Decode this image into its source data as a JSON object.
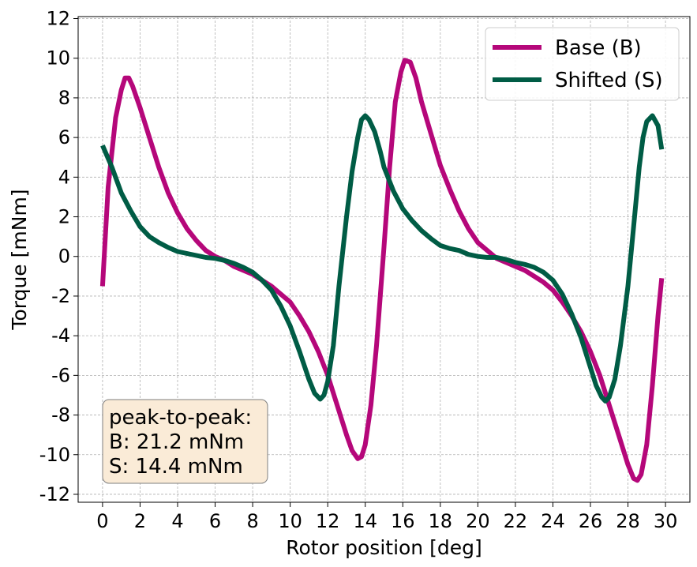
{
  "chart_data": {
    "type": "line",
    "title": "",
    "xlabel": "Rotor position [deg]",
    "ylabel": "Torque [mNm]",
    "xlim": [
      -1.3,
      31.3
    ],
    "ylim": [
      -12.4,
      12.1
    ],
    "xticks": [
      0,
      2,
      4,
      6,
      8,
      10,
      12,
      14,
      16,
      18,
      20,
      22,
      24,
      26,
      28,
      30
    ],
    "yticks": [
      -12,
      -10,
      -8,
      -6,
      -4,
      -2,
      0,
      2,
      4,
      6,
      8,
      10,
      12
    ],
    "grid": true,
    "legend_position": "top-right",
    "series": [
      {
        "name": "Base (B)",
        "color": "#b5077a",
        "x": [
          0,
          0.3,
          0.7,
          1.0,
          1.2,
          1.4,
          1.6,
          2.0,
          2.5,
          3.0,
          3.5,
          4.0,
          4.5,
          5.0,
          5.5,
          6.0,
          6.5,
          7.0,
          7.5,
          8.0,
          8.5,
          9.0,
          9.5,
          10.0,
          10.5,
          11.0,
          11.5,
          12.0,
          12.5,
          13.0,
          13.3,
          13.6,
          13.8,
          14.0,
          14.3,
          14.6,
          15.0,
          15.3,
          15.6,
          15.9,
          16.1,
          16.4,
          16.7,
          17.0,
          17.5,
          18.0,
          18.5,
          19.0,
          19.5,
          20.0,
          20.5,
          21.0,
          21.5,
          22.0,
          22.5,
          23.0,
          23.5,
          24.0,
          24.5,
          25.0,
          25.5,
          26.0,
          26.5,
          27.0,
          27.5,
          28.0,
          28.3,
          28.5,
          28.7,
          29.0,
          29.3,
          29.6,
          29.8
        ],
        "values": [
          -1.5,
          3.5,
          7.0,
          8.4,
          9.0,
          9.0,
          8.6,
          7.5,
          6.0,
          4.5,
          3.2,
          2.2,
          1.4,
          0.8,
          0.3,
          0.0,
          -0.2,
          -0.5,
          -0.7,
          -0.9,
          -1.2,
          -1.5,
          -1.9,
          -2.3,
          -3.0,
          -3.8,
          -4.8,
          -6.0,
          -7.5,
          -9.0,
          -9.8,
          -10.2,
          -10.1,
          -9.5,
          -7.5,
          -4.5,
          0.5,
          4.5,
          7.8,
          9.3,
          9.9,
          9.8,
          9.0,
          7.8,
          6.2,
          4.6,
          3.4,
          2.3,
          1.4,
          0.7,
          0.3,
          -0.1,
          -0.3,
          -0.5,
          -0.7,
          -1.0,
          -1.3,
          -1.7,
          -2.3,
          -3.0,
          -3.8,
          -4.8,
          -6.0,
          -7.5,
          -9.0,
          -10.5,
          -11.2,
          -11.3,
          -11.0,
          -9.5,
          -6.5,
          -3.0,
          -1.1
        ]
      },
      {
        "name": "Shifted (S)",
        "color": "#005c45",
        "x": [
          0,
          0.5,
          1.0,
          1.5,
          2.0,
          2.5,
          3.0,
          3.5,
          4.0,
          4.5,
          5.0,
          5.5,
          6.0,
          6.5,
          7.0,
          7.5,
          8.0,
          8.5,
          9.0,
          9.5,
          10.0,
          10.5,
          11.0,
          11.3,
          11.6,
          11.8,
          12.0,
          12.3,
          12.6,
          13.0,
          13.3,
          13.6,
          13.8,
          14.0,
          14.2,
          14.5,
          14.8,
          15.0,
          15.5,
          16.0,
          16.5,
          17.0,
          17.5,
          18.0,
          18.5,
          19.0,
          19.5,
          20.0,
          20.5,
          21.0,
          21.5,
          22.0,
          22.5,
          23.0,
          23.5,
          24.0,
          24.5,
          25.0,
          25.5,
          26.0,
          26.3,
          26.6,
          26.8,
          27.0,
          27.3,
          27.6,
          28.0,
          28.3,
          28.6,
          28.8,
          29.0,
          29.3,
          29.6,
          29.8
        ],
        "values": [
          5.6,
          4.5,
          3.2,
          2.3,
          1.5,
          1.0,
          0.7,
          0.45,
          0.25,
          0.15,
          0.05,
          -0.05,
          -0.1,
          -0.2,
          -0.35,
          -0.55,
          -0.8,
          -1.2,
          -1.7,
          -2.5,
          -3.5,
          -4.8,
          -6.2,
          -6.9,
          -7.2,
          -7.0,
          -6.3,
          -4.5,
          -1.5,
          2.0,
          4.3,
          6.0,
          6.9,
          7.1,
          6.9,
          6.3,
          5.3,
          4.5,
          3.3,
          2.4,
          1.8,
          1.3,
          0.9,
          0.55,
          0.4,
          0.3,
          0.1,
          0.0,
          -0.05,
          -0.05,
          -0.15,
          -0.3,
          -0.4,
          -0.55,
          -0.8,
          -1.2,
          -1.9,
          -2.9,
          -4.1,
          -5.6,
          -6.5,
          -7.1,
          -7.3,
          -7.1,
          -6.2,
          -4.5,
          -1.5,
          1.5,
          4.5,
          6.0,
          6.8,
          7.1,
          6.6,
          5.4
        ]
      }
    ],
    "annotation": {
      "lines": [
        "peak-to-peak:",
        "B: 21.2 mNm",
        "S: 14.4 mNm"
      ],
      "box_fill": "#faebd7",
      "box_stroke": "#7f7f7f"
    }
  }
}
